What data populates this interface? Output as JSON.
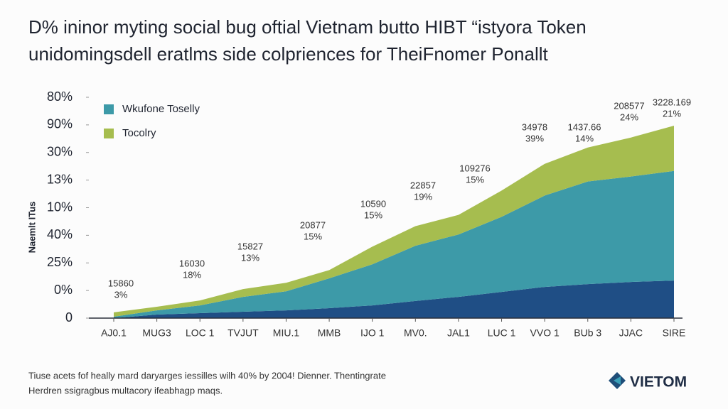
{
  "chart_data": {
    "type": "stacked_area",
    "title": "D% ininor myting social bug oftial Vietnam butto HIBT “istyora Token",
    "subtitle": "unidomingsdell eratlms side colpriences for TheiFnomer Ponallt",
    "y_label": "Naemlt ITus",
    "categories": [
      "AJ0.1",
      "MUG3",
      "LOC 1",
      "TVJUT",
      "MIU.1",
      "MMB",
      "IJO 1",
      "MV0.",
      "JAL1",
      "LUC 1",
      "VVO 1",
      "BUb 3",
      "JJAC",
      "SIRE"
    ],
    "series": [
      {
        "color": "#1f4e85",
        "values": [
          0,
          0.13,
          0.18,
          0.23,
          0.28,
          0.36,
          0.46,
          0.62,
          0.77,
          0.95,
          1.13,
          1.23,
          1.31,
          1.36
        ]
      },
      {
        "name": "Wkufone Toselly",
        "color": "#3d9aa8",
        "values": [
          0.05,
          0.15,
          0.28,
          0.54,
          0.69,
          1.08,
          1.49,
          2.0,
          2.26,
          2.72,
          3.31,
          3.72,
          3.82,
          3.97
        ]
      },
      {
        "name": "Tocolry",
        "color": "#a6bd4f",
        "values": [
          0.16,
          0.13,
          0.18,
          0.28,
          0.31,
          0.3,
          0.64,
          0.71,
          0.71,
          0.95,
          1.15,
          1.23,
          1.41,
          1.64
        ]
      }
    ],
    "ylim": [
      0,
      8
    ],
    "yticks": [
      0,
      {
        "value": 1,
        "label": "0%"
      },
      {
        "value": 2,
        "label": "25%"
      },
      {
        "value": 3,
        "label": "40%"
      },
      {
        "value": 4,
        "label": "10%"
      },
      {
        "value": 5,
        "label": "13%"
      },
      {
        "value": 6,
        "label": "30%"
      },
      {
        "value": 7,
        "label": "90%"
      },
      {
        "value": 8,
        "label": "80%"
      }
    ],
    "grid": false,
    "annotations": [
      [
        "15860",
        "3%"
      ],
      [
        "16030",
        "18%"
      ],
      [
        "15827",
        "13%"
      ],
      [
        "20877",
        "15%"
      ],
      [
        "10590",
        "15%"
      ],
      [
        "22857",
        "19%"
      ],
      [
        "109276",
        "15%"
      ],
      [
        "34978",
        "39%"
      ],
      [
        "1437.66",
        "14%"
      ],
      [
        "208577",
        "24%"
      ],
      [
        "3228.169",
        "21%"
      ]
    ],
    "footnote": [
      "Tiuse acets fof heally mard daryarges iessilles wilh 40% by 2004! Dienner. Thentingrate",
      "Herdren ssigragbus multacory ifeabhagp maqs."
    ]
  },
  "logo": "VIETOM"
}
